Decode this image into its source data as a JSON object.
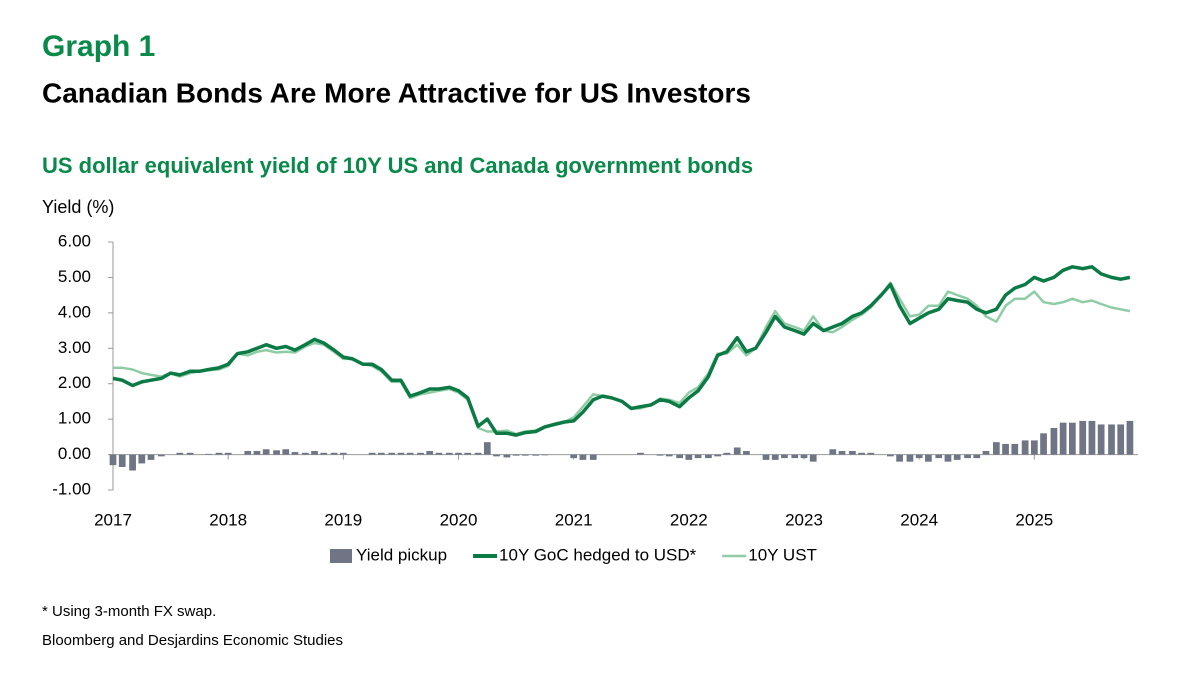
{
  "header": {
    "label": "Graph 1",
    "title": "Canadian Bonds Are More Attractive for US Investors"
  },
  "chart_data": {
    "type": "combo",
    "title": "US dollar equivalent yield of 10Y US and Canada government bonds",
    "y_label": "Yield (%)",
    "x": [
      2017.0,
      2017.08,
      2017.17,
      2017.25,
      2017.33,
      2017.42,
      2017.5,
      2017.58,
      2017.67,
      2017.75,
      2017.83,
      2017.92,
      2018.0,
      2018.08,
      2018.17,
      2018.25,
      2018.33,
      2018.42,
      2018.5,
      2018.58,
      2018.67,
      2018.75,
      2018.83,
      2018.92,
      2019.0,
      2019.08,
      2019.17,
      2019.25,
      2019.33,
      2019.42,
      2019.5,
      2019.58,
      2019.67,
      2019.75,
      2019.83,
      2019.92,
      2020.0,
      2020.08,
      2020.17,
      2020.25,
      2020.33,
      2020.42,
      2020.5,
      2020.58,
      2020.67,
      2020.75,
      2020.83,
      2020.92,
      2021.0,
      2021.08,
      2021.17,
      2021.25,
      2021.33,
      2021.42,
      2021.5,
      2021.58,
      2021.67,
      2021.75,
      2021.83,
      2021.92,
      2022.0,
      2022.08,
      2022.17,
      2022.25,
      2022.33,
      2022.42,
      2022.5,
      2022.58,
      2022.67,
      2022.75,
      2022.83,
      2022.92,
      2023.0,
      2023.08,
      2023.17,
      2023.25,
      2023.33,
      2023.42,
      2023.5,
      2023.58,
      2023.67,
      2023.75,
      2023.83,
      2023.92,
      2024.0,
      2024.08,
      2024.17,
      2024.25,
      2024.33,
      2024.42,
      2024.5,
      2024.58,
      2024.67,
      2024.75,
      2024.83,
      2024.92,
      2025.0,
      2025.08,
      2025.17,
      2025.25,
      2025.33,
      2025.42,
      2025.5,
      2025.58,
      2025.67,
      2025.75,
      2025.83
    ],
    "series": [
      {
        "name": "Yield pickup",
        "type": "bar",
        "color": "#6f7585",
        "values": [
          -0.3,
          -0.35,
          -0.45,
          -0.25,
          -0.15,
          -0.05,
          0,
          0.05,
          0.05,
          0,
          0.02,
          0.05,
          0.05,
          0,
          0.1,
          0.1,
          0.15,
          0.12,
          0.15,
          0.07,
          0.05,
          0.1,
          0.05,
          0.05,
          0.05,
          0,
          0,
          0.05,
          0.05,
          0.05,
          0.05,
          0.05,
          0.05,
          0.1,
          0.05,
          0.05,
          0.05,
          0.05,
          0.05,
          0.35,
          -0.05,
          -0.08,
          -0.03,
          -0.03,
          -0.03,
          -0.02,
          0,
          0,
          -0.1,
          -0.15,
          -0.15,
          0,
          0,
          0,
          0,
          0.05,
          0,
          -0.03,
          -0.05,
          -0.1,
          -0.15,
          -0.1,
          -0.1,
          -0.05,
          0.05,
          0.2,
          0.1,
          0,
          -0.15,
          -0.15,
          -0.1,
          -0.1,
          -0.1,
          -0.2,
          0,
          0.15,
          0.1,
          0.1,
          0.05,
          0.05,
          0,
          -0.05,
          -0.2,
          -0.2,
          -0.1,
          -0.2,
          -0.1,
          -0.2,
          -0.15,
          -0.1,
          -0.1,
          0.1,
          0.35,
          0.3,
          0.3,
          0.4,
          0.4,
          0.6,
          0.75,
          0.9,
          0.9,
          0.95,
          0.95,
          0.85,
          0.85,
          0.85,
          0.95
        ]
      },
      {
        "name": "10Y GoC hedged to USD*",
        "type": "line",
        "color": "#0b7a45",
        "values": [
          2.15,
          2.1,
          1.95,
          2.05,
          2.1,
          2.15,
          2.3,
          2.25,
          2.35,
          2.35,
          2.4,
          2.45,
          2.55,
          2.85,
          2.9,
          3.0,
          3.1,
          3.0,
          3.05,
          2.95,
          3.1,
          3.25,
          3.15,
          2.95,
          2.75,
          2.7,
          2.55,
          2.55,
          2.4,
          2.1,
          2.1,
          1.65,
          1.75,
          1.85,
          1.85,
          1.9,
          1.8,
          1.6,
          0.8,
          1.0,
          0.6,
          0.6,
          0.55,
          0.62,
          0.65,
          0.78,
          0.85,
          0.92,
          0.95,
          1.2,
          1.55,
          1.65,
          1.6,
          1.5,
          1.3,
          1.35,
          1.4,
          1.55,
          1.5,
          1.35,
          1.6,
          1.8,
          2.2,
          2.8,
          2.9,
          3.3,
          2.9,
          3.0,
          3.45,
          3.9,
          3.6,
          3.5,
          3.4,
          3.7,
          3.5,
          3.6,
          3.7,
          3.9,
          4.0,
          4.2,
          4.5,
          4.8,
          4.2,
          3.7,
          3.85,
          4.0,
          4.1,
          4.4,
          4.35,
          4.3,
          4.1,
          4.0,
          4.1,
          4.5,
          4.7,
          4.8,
          5.0,
          4.9,
          5.0,
          5.2,
          5.3,
          5.25,
          5.3,
          5.1,
          5.0,
          4.95,
          5.0
        ]
      },
      {
        "name": "10Y UST",
        "type": "line",
        "color": "#8fcca6",
        "values": [
          2.45,
          2.45,
          2.4,
          2.3,
          2.25,
          2.2,
          2.3,
          2.2,
          2.3,
          2.35,
          2.38,
          2.4,
          2.5,
          2.85,
          2.8,
          2.9,
          2.95,
          2.88,
          2.9,
          2.88,
          3.05,
          3.15,
          3.1,
          2.9,
          2.7,
          2.7,
          2.55,
          2.5,
          2.35,
          2.05,
          2.05,
          1.6,
          1.7,
          1.75,
          1.8,
          1.85,
          1.75,
          1.55,
          0.75,
          0.65,
          0.65,
          0.68,
          0.58,
          0.65,
          0.68,
          0.8,
          0.85,
          0.92,
          1.05,
          1.35,
          1.7,
          1.65,
          1.6,
          1.5,
          1.3,
          1.3,
          1.4,
          1.58,
          1.55,
          1.45,
          1.75,
          1.9,
          2.3,
          2.85,
          2.85,
          3.1,
          2.8,
          3.0,
          3.6,
          4.05,
          3.7,
          3.6,
          3.5,
          3.9,
          3.5,
          3.45,
          3.6,
          3.8,
          3.95,
          4.15,
          4.5,
          4.85,
          4.4,
          3.9,
          3.95,
          4.2,
          4.2,
          4.6,
          4.5,
          4.4,
          4.2,
          3.9,
          3.75,
          4.2,
          4.4,
          4.4,
          4.6,
          4.3,
          4.25,
          4.3,
          4.4,
          4.3,
          4.35,
          4.25,
          4.15,
          4.1,
          4.05
        ]
      }
    ],
    "xlim": [
      2017,
      2025.9
    ],
    "xticks": [
      2017,
      2018,
      2019,
      2020,
      2021,
      2022,
      2023,
      2024,
      2025
    ],
    "ylim": [
      -1,
      6
    ],
    "yticks": [
      {
        "value": -1,
        "label": "-1.00"
      },
      {
        "value": 0,
        "label": "0.00"
      },
      {
        "value": 1,
        "label": "1.00"
      },
      {
        "value": 2,
        "label": "2.00"
      },
      {
        "value": 3,
        "label": "3.00"
      },
      {
        "value": 4,
        "label": "4.00"
      },
      {
        "value": 5,
        "label": "5.00"
      },
      {
        "value": 6,
        "label": "6.00"
      }
    ],
    "legend": "bottom"
  },
  "notes": [
    "* Using 3-month FX swap.",
    "Bloomberg and Desjardins Economic Studies"
  ]
}
